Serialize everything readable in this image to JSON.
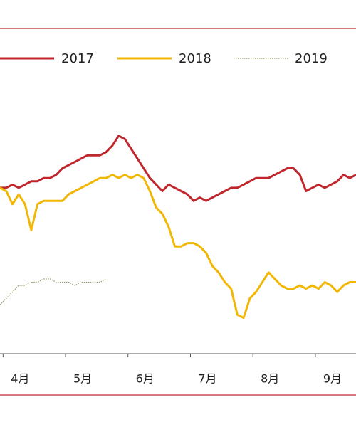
{
  "chart_data": {
    "type": "line",
    "xticks": [
      {
        "value": 4,
        "label": "4月"
      },
      {
        "value": 5,
        "label": "5月"
      },
      {
        "value": 6,
        "label": "6月"
      },
      {
        "value": 7,
        "label": "7月"
      },
      {
        "value": 8,
        "label": "8月"
      },
      {
        "value": 9,
        "label": "9月"
      }
    ],
    "xlim": [
      3.7,
      9.4
    ],
    "ylim": [
      0,
      100
    ],
    "x": [
      3.7,
      3.8,
      3.9,
      4.0,
      4.1,
      4.2,
      4.3,
      4.4,
      4.5,
      4.6,
      4.7,
      4.8,
      4.9,
      5.0,
      5.1,
      5.2,
      5.3,
      5.4,
      5.5,
      5.6,
      5.7,
      5.8,
      5.9,
      6.0,
      6.1,
      6.2,
      6.3,
      6.4,
      6.5,
      6.6,
      6.7,
      6.8,
      6.9,
      7.0,
      7.1,
      7.2,
      7.3,
      7.4,
      7.5,
      7.6,
      7.7,
      7.8,
      7.9,
      8.0,
      8.1,
      8.2,
      8.3,
      8.4,
      8.5,
      8.6,
      8.7,
      8.8,
      8.9,
      9.0,
      9.1,
      9.2,
      9.3,
      9.4
    ],
    "series": [
      {
        "name": "2017",
        "color": "#c0272d",
        "style": "solid",
        "values": [
          51,
          51,
          52,
          51,
          52,
          53,
          53,
          54,
          54,
          55,
          57,
          58,
          59,
          60,
          61,
          61,
          61,
          62,
          64,
          67,
          66,
          63,
          60,
          57,
          54,
          52,
          50,
          52,
          51,
          50,
          49,
          47,
          48,
          47,
          48,
          49,
          50,
          51,
          51,
          52,
          53,
          54,
          54,
          54,
          55,
          56,
          57,
          57,
          55,
          50,
          51,
          52,
          51,
          52,
          53,
          55,
          54,
          55
        ]
      },
      {
        "name": "2018",
        "color": "#f2b705",
        "style": "solid",
        "values": [
          51,
          50,
          46,
          49,
          46,
          38,
          46,
          47,
          47,
          47,
          47,
          49,
          50,
          51,
          52,
          53,
          54,
          54,
          55,
          54,
          55,
          54,
          55,
          54,
          50,
          45,
          43,
          39,
          33,
          33,
          34,
          34,
          33,
          31,
          27,
          25,
          22,
          20,
          12,
          11,
          17,
          19,
          22,
          25,
          23,
          21,
          20,
          20,
          21,
          20,
          21,
          20,
          22,
          21,
          19,
          21,
          22,
          22
        ]
      },
      {
        "name": "2019",
        "color": "#9c9a6e",
        "style": "dotted",
        "values": [
          15,
          17,
          19,
          21,
          21,
          22,
          22,
          23,
          23,
          22,
          22,
          22,
          21,
          22,
          22,
          22,
          22,
          23,
          null,
          null,
          null,
          null,
          null,
          null,
          null,
          null,
          null,
          null,
          null,
          null,
          null,
          null,
          null,
          null,
          null,
          null,
          null,
          null,
          null,
          null,
          null,
          null,
          null,
          null,
          null,
          null,
          null,
          null,
          null,
          null,
          null,
          null,
          null,
          null,
          null,
          null,
          null,
          null
        ]
      }
    ]
  }
}
